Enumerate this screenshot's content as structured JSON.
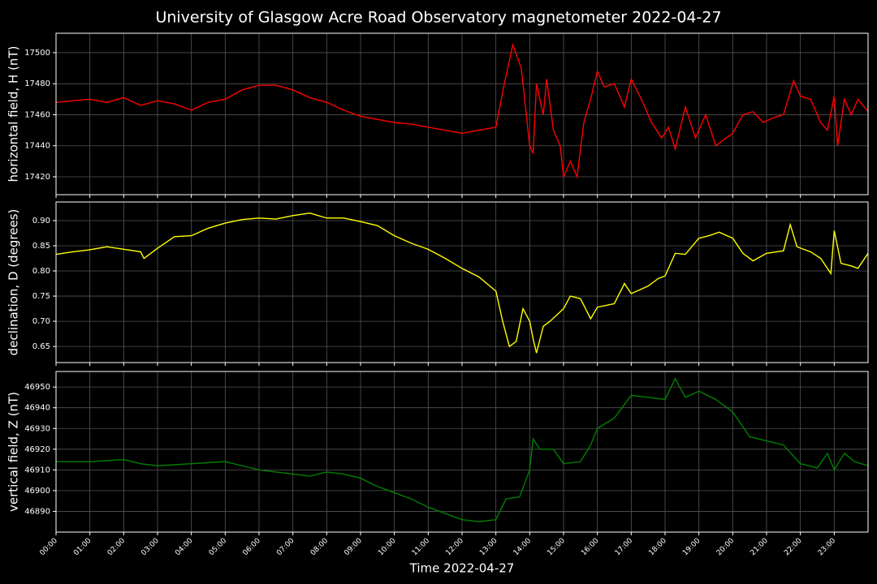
{
  "chart_data": [
    {
      "type": "line",
      "title": "University of Glasgow Acre Road Observatory magnetometer 2022-04-27",
      "ylabel": "horizontal field, H (nT)",
      "grid": true,
      "xlim": [
        0,
        24
      ],
      "ylim": [
        17408.5,
        17512.5
      ],
      "yticks": [
        17420,
        17440,
        17460,
        17480,
        17500
      ],
      "x": [
        0,
        0.5,
        1,
        1.5,
        2,
        2.5,
        3,
        3.5,
        4,
        4.5,
        5,
        5.5,
        6,
        6.5,
        7,
        7.5,
        8,
        8.5,
        9,
        9.5,
        10,
        10.5,
        11,
        11.5,
        12,
        12.5,
        13,
        13.25,
        13.5,
        13.75,
        14,
        14.1,
        14.2,
        14.4,
        14.5,
        14.7,
        14.9,
        15,
        15.2,
        15.4,
        15.6,
        15.8,
        16,
        16.2,
        16.5,
        16.8,
        17,
        17.3,
        17.6,
        17.9,
        18.1,
        18.3,
        18.6,
        18.9,
        19.2,
        19.5,
        19.8,
        20,
        20.3,
        20.6,
        20.9,
        21.2,
        21.5,
        21.8,
        22,
        22.3,
        22.6,
        22.8,
        23,
        23.1,
        23.3,
        23.5,
        23.7,
        24
      ],
      "series": [
        {
          "name": "H",
          "color": "#ff0000",
          "values": [
            17468,
            17469,
            17470,
            17468,
            17471,
            17466,
            17469,
            17467,
            17463,
            17468,
            17470,
            17476,
            17479,
            17479,
            17476,
            17471,
            17468,
            17463,
            17459,
            17457,
            17455,
            17454,
            17452,
            17450,
            17448,
            17450,
            17452,
            17480,
            17505,
            17490,
            17440,
            17435,
            17480,
            17460,
            17483,
            17450,
            17440,
            17420,
            17430,
            17420,
            17455,
            17470,
            17488,
            17478,
            17480,
            17465,
            17483,
            17470,
            17455,
            17445,
            17452,
            17438,
            17465,
            17445,
            17460,
            17440,
            17445,
            17448,
            17460,
            17462,
            17455,
            17458,
            17460,
            17482,
            17472,
            17470,
            17455,
            17450,
            17472,
            17440,
            17470,
            17460,
            17470,
            17462
          ]
        }
      ]
    },
    {
      "type": "line",
      "ylabel": "declination, D (degrees)",
      "grid": true,
      "xlim": [
        0,
        24
      ],
      "ylim": [
        0.618,
        0.937
      ],
      "yticks": [
        0.65,
        {
          "value": 0.7,
          "label": "0.70"
        },
        0.75,
        {
          "value": 0.8,
          "label": "0.80"
        },
        0.85,
        {
          "value": 0.9,
          "label": "0.90"
        }
      ],
      "x": [
        0,
        0.5,
        1,
        1.5,
        2,
        2.5,
        2.6,
        3,
        3.5,
        4,
        4.5,
        5,
        5.5,
        6,
        6.5,
        7,
        7.5,
        8,
        8.5,
        9,
        9.5,
        10,
        10.5,
        11,
        11.5,
        12,
        12.5,
        13,
        13.2,
        13.4,
        13.6,
        13.8,
        14,
        14.1,
        14.2,
        14.4,
        14.6,
        15,
        15.2,
        15.5,
        15.8,
        16,
        16.5,
        16.8,
        17,
        17.5,
        17.8,
        18,
        18.3,
        18.6,
        19,
        19.3,
        19.6,
        20,
        20.3,
        20.6,
        21,
        21.5,
        21.7,
        21.9,
        22.3,
        22.6,
        22.9,
        23,
        23.2,
        23.5,
        23.7,
        24
      ],
      "series": [
        {
          "name": "D",
          "color": "#ffff00",
          "values": [
            0.833,
            0.838,
            0.842,
            0.848,
            0.843,
            0.838,
            0.825,
            0.845,
            0.868,
            0.87,
            0.885,
            0.895,
            0.902,
            0.905,
            0.903,
            0.91,
            0.915,
            0.905,
            0.905,
            0.898,
            0.89,
            0.87,
            0.855,
            0.843,
            0.825,
            0.805,
            0.788,
            0.76,
            0.7,
            0.65,
            0.66,
            0.725,
            0.7,
            0.665,
            0.637,
            0.69,
            0.7,
            0.725,
            0.75,
            0.745,
            0.705,
            0.728,
            0.735,
            0.775,
            0.755,
            0.77,
            0.785,
            0.79,
            0.835,
            0.833,
            0.865,
            0.87,
            0.877,
            0.865,
            0.835,
            0.82,
            0.835,
            0.84,
            0.892,
            0.848,
            0.838,
            0.825,
            0.795,
            0.88,
            0.815,
            0.81,
            0.805,
            0.835
          ]
        }
      ]
    },
    {
      "type": "line",
      "ylabel": "vertical field, Z (nT)",
      "xlabel": "Time 2022-04-27",
      "grid": true,
      "xlim": [
        0,
        24
      ],
      "ylim": [
        46880,
        46957.5
      ],
      "yticks": [
        46890,
        46900,
        46910,
        46920,
        46930,
        46940,
        46950
      ],
      "xticks": [
        {
          "value": 0,
          "label": "00:00"
        },
        {
          "value": 1,
          "label": "01:00"
        },
        {
          "value": 2,
          "label": "02:00"
        },
        {
          "value": 3,
          "label": "03:00"
        },
        {
          "value": 4,
          "label": "04:00"
        },
        {
          "value": 5,
          "label": "05:00"
        },
        {
          "value": 6,
          "label": "06:00"
        },
        {
          "value": 7,
          "label": "07:00"
        },
        {
          "value": 8,
          "label": "08:00"
        },
        {
          "value": 9,
          "label": "09:00"
        },
        {
          "value": 10,
          "label": "10:00"
        },
        {
          "value": 11,
          "label": "11:00"
        },
        {
          "value": 12,
          "label": "12:00"
        },
        {
          "value": 13,
          "label": "13:00"
        },
        {
          "value": 14,
          "label": "14:00"
        },
        {
          "value": 15,
          "label": "15:00"
        },
        {
          "value": 16,
          "label": "16:00"
        },
        {
          "value": 17,
          "label": "17:00"
        },
        {
          "value": 18,
          "label": "18:00"
        },
        {
          "value": 19,
          "label": "19:00"
        },
        {
          "value": 20,
          "label": "20:00"
        },
        {
          "value": 21,
          "label": "21:00"
        },
        {
          "value": 22,
          "label": "22:00"
        },
        {
          "value": 23,
          "label": "23:00"
        }
      ],
      "x": [
        0,
        1,
        2,
        2.5,
        3,
        4,
        5,
        5.5,
        6,
        6.5,
        7,
        7.5,
        8,
        8.5,
        9,
        9.5,
        10,
        10.5,
        11,
        11.5,
        12,
        12.5,
        13,
        13.3,
        13.7,
        14,
        14.1,
        14.3,
        14.7,
        15,
        15.5,
        15.8,
        16,
        16.5,
        17,
        17.5,
        18,
        18.3,
        18.6,
        19,
        19.5,
        20,
        20.5,
        21,
        21.5,
        22,
        22.5,
        22.8,
        23,
        23.3,
        23.6,
        24
      ],
      "series": [
        {
          "name": "Z",
          "color": "#008000",
          "values": [
            46914,
            46914,
            46915,
            46913,
            46912,
            46913,
            46914,
            46912,
            46910,
            46909,
            46908,
            46907,
            46909,
            46908,
            46906,
            46902,
            46899,
            46896,
            46892,
            46889,
            46886,
            46885,
            46886,
            46896,
            46897,
            46910,
            46925,
            46920,
            46920,
            46913,
            46914,
            46922,
            46930,
            46935,
            46946,
            46945,
            46944,
            46954,
            46945,
            46948,
            46944,
            46938,
            46926,
            46924,
            46922,
            46913,
            46911,
            46918,
            46910,
            46918,
            46914,
            46912
          ]
        }
      ]
    }
  ]
}
